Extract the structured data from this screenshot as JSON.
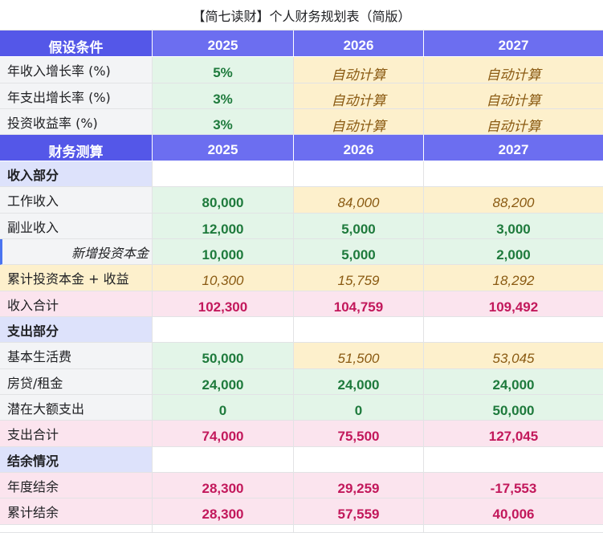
{
  "title": "【简七读财】个人财务规划表（简版）",
  "years": [
    "2025",
    "2026",
    "2027"
  ],
  "assumptions": {
    "header": "假设条件",
    "rows": [
      {
        "label": "年收入增长率 (%)",
        "v2025": "5%",
        "v2026": "自动计算",
        "v2027": "自动计算"
      },
      {
        "label": "年支出增长率 (%)",
        "v2025": "3%",
        "v2026": "自动计算",
        "v2027": "自动计算"
      },
      {
        "label": "投资收益率 (%)",
        "v2025": "3%",
        "v2026": "自动计算",
        "v2027": "自动计算"
      }
    ]
  },
  "finance": {
    "header": "财务测算",
    "income_section": "收入部分",
    "income_rows": [
      {
        "label": "工作收入",
        "v2025": "80,000",
        "v2026": "84,000",
        "v2027": "88,200"
      },
      {
        "label": "副业收入",
        "v2025": "12,000",
        "v2026": "5,000",
        "v2027": "3,000"
      },
      {
        "label": "新增投资本金",
        "v2025": "10,000",
        "v2026": "5,000",
        "v2027": "2,000"
      },
      {
        "label": "累计投资本金 + 收益",
        "v2025": "10,300",
        "v2026": "15,759",
        "v2027": "18,292"
      },
      {
        "label": "收入合计",
        "v2025": "102,300",
        "v2026": "104,759",
        "v2027": "109,492"
      }
    ],
    "expense_section": "支出部分",
    "expense_rows": [
      {
        "label": "基本生活费",
        "v2025": "50,000",
        "v2026": "51,500",
        "v2027": "53,045"
      },
      {
        "label": "房贷/租金",
        "v2025": "24,000",
        "v2026": "24,000",
        "v2027": "24,000"
      },
      {
        "label": "潜在大额支出",
        "v2025": "0",
        "v2026": "0",
        "v2027": "50,000"
      },
      {
        "label": "支出合计",
        "v2025": "74,000",
        "v2026": "75,500",
        "v2027": "127,045"
      }
    ],
    "balance_section": "结余情况",
    "balance_rows": [
      {
        "label": "年度结余",
        "v2025": "28,300",
        "v2026": "29,259",
        "v2027": "-17,553"
      },
      {
        "label": "累计结余",
        "v2025": "28,300",
        "v2026": "57,559",
        "v2027": "40,006"
      }
    ]
  },
  "colors": {
    "header_bg": "#6c6ef0",
    "section_bg": "#dde2fb",
    "input_bg": "#e3f5e8",
    "auto_bg": "#fdf0cc",
    "total_bg": "#fbe4ee"
  }
}
